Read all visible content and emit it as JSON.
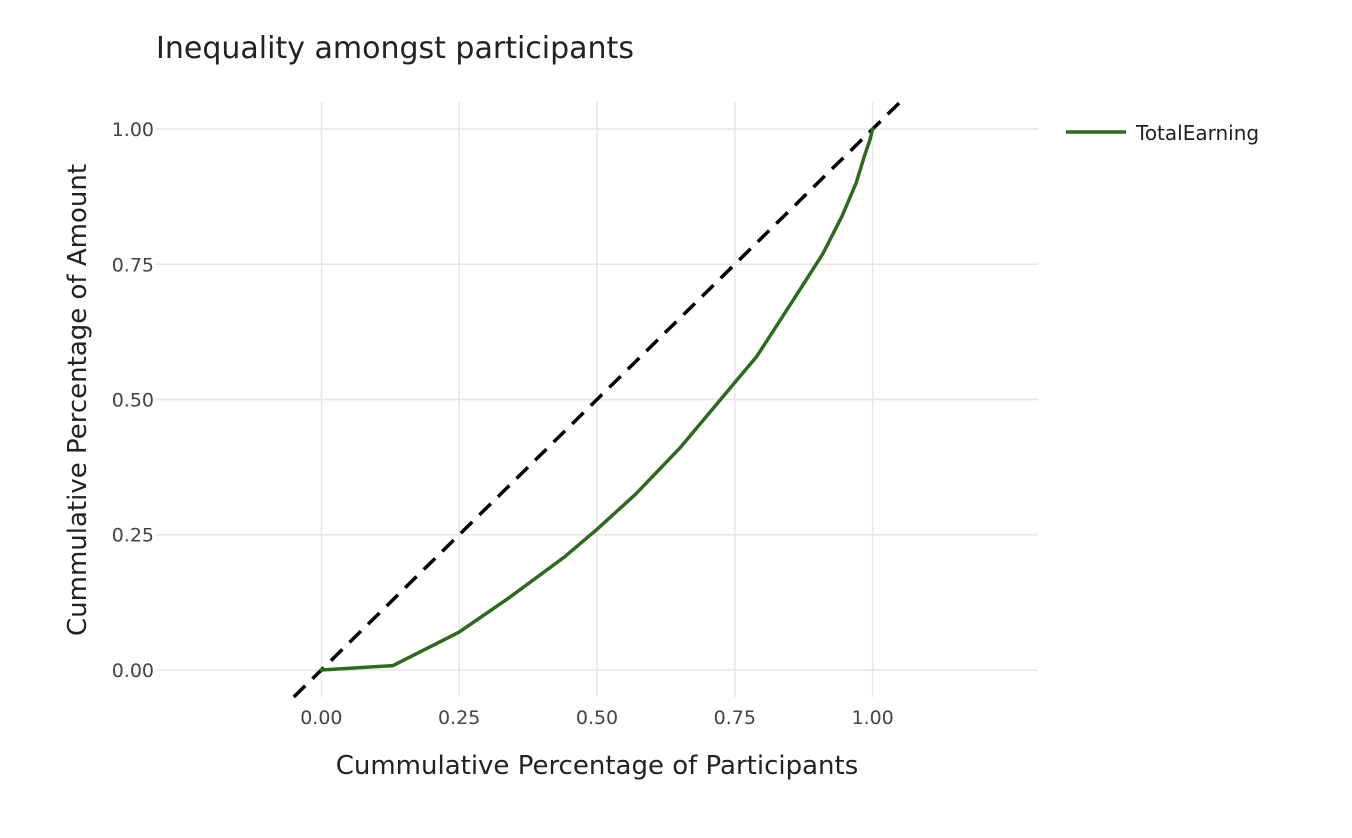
{
  "chart_data": {
    "type": "line",
    "title": "Inequality amongst participants",
    "xlabel": "Cummulative Percentage of Participants",
    "ylabel": "Cummulative Percentage of Amount",
    "xlim": [
      -0.3,
      1.3
    ],
    "ylim": [
      -0.05,
      1.05
    ],
    "x_ticks": [
      0.0,
      0.25,
      0.5,
      0.75,
      1.0
    ],
    "x_tick_labels": [
      "0.00",
      "0.25",
      "0.50",
      "0.75",
      "1.00"
    ],
    "y_ticks": [
      0.0,
      0.25,
      0.5,
      0.75,
      1.0
    ],
    "y_tick_labels": [
      "0.00",
      "0.25",
      "0.50",
      "0.75",
      "1.00"
    ],
    "grid": true,
    "legend_position": "top-right",
    "series": [
      {
        "name": "TotalEarning",
        "color": "#2d6a1f",
        "line_style": "solid",
        "x": [
          0.0,
          0.13,
          0.25,
          0.34,
          0.44,
          0.5,
          0.57,
          0.65,
          0.72,
          0.79,
          0.86,
          0.91,
          0.945,
          0.97,
          0.985,
          0.995,
          1.0
        ],
        "y": [
          0.0,
          0.008,
          0.07,
          0.133,
          0.208,
          0.26,
          0.325,
          0.41,
          0.495,
          0.58,
          0.69,
          0.77,
          0.84,
          0.9,
          0.95,
          0.98,
          1.0
        ]
      }
    ],
    "reference_line": {
      "color": "#000000",
      "line_style": "dashed",
      "x": [
        -0.05,
        1.05
      ],
      "y": [
        -0.05,
        1.05
      ]
    }
  }
}
